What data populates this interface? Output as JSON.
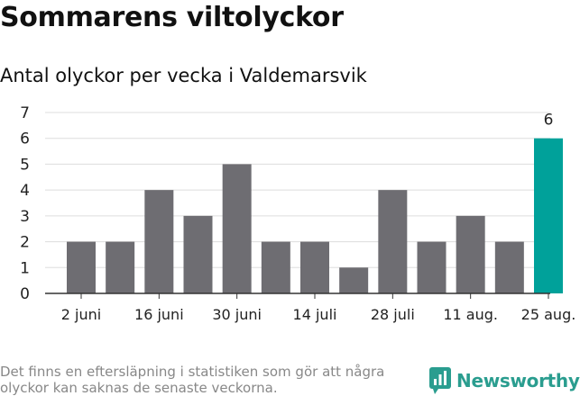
{
  "title": "Sommarens viltolyckor",
  "subtitle": "Antal olyckor per vecka i Valdemarsvik",
  "footnote": "Det finns en eftersläpning i statistiken som gör att några olyckor kan saknas de senaste veckorna.",
  "logo": "Newsworthy",
  "colors": {
    "bar": "#6e6d72",
    "highlight": "#00a19a",
    "grid": "#dddddd",
    "axis": "#333333",
    "brand": "#2a9d8f"
  },
  "chart_data": {
    "type": "bar",
    "values": [
      2,
      2,
      4,
      3,
      5,
      2,
      2,
      1,
      4,
      2,
      3,
      2,
      6
    ],
    "highlight_index": 12,
    "highlight_label": "6",
    "x_tick_labels": [
      "2 juni",
      "16 juni",
      "30 juni",
      "14 juli",
      "28 juli",
      "11 aug.",
      "25 aug."
    ],
    "x_tick_bar_indices": [
      0,
      2,
      4,
      6,
      8,
      10,
      12
    ],
    "y_ticks": [
      0,
      1,
      2,
      3,
      4,
      5,
      6,
      7
    ],
    "ylim": [
      0,
      7
    ],
    "grid": true
  }
}
